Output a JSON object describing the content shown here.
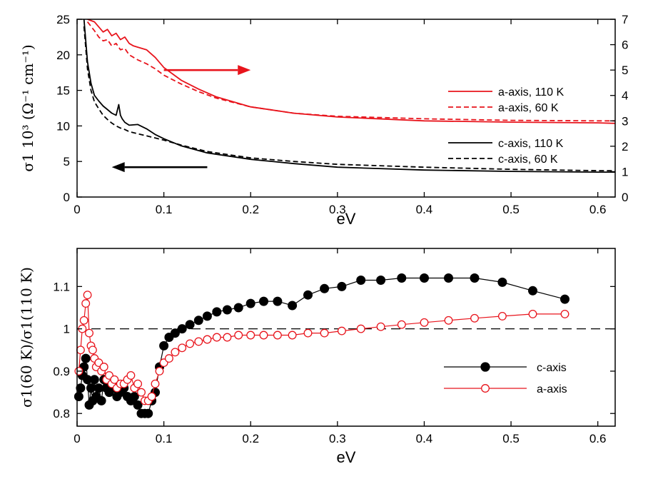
{
  "chart_data": [
    {
      "type": "line",
      "panel": "top",
      "xlabel": "eV",
      "ylabel_left": "σ1 10³ (Ω⁻¹ cm⁻¹)",
      "xlim": [
        0,
        0.62
      ],
      "ylim_left": [
        0,
        25
      ],
      "ylim_right": [
        0,
        7
      ],
      "xticks": [
        "0",
        "0.1",
        "0.2",
        "0.3",
        "0.4",
        "0.5",
        "0.6"
      ],
      "xtick_values": [
        0,
        0.1,
        0.2,
        0.3,
        0.4,
        0.5,
        0.6
      ],
      "yticks_left": [
        "0",
        "5",
        "10",
        "15",
        "20",
        "25"
      ],
      "ytick_values_left": [
        0,
        5,
        10,
        15,
        20,
        25
      ],
      "yticks_right": [
        "0",
        "1",
        "2",
        "3",
        "4",
        "5",
        "6",
        "7"
      ],
      "ytick_values_right": [
        0,
        1,
        2,
        3,
        4,
        5,
        6,
        7
      ],
      "series": [
        {
          "name": "a-axis, 110 K",
          "axis": "right",
          "color": "#e8141c",
          "dash": "solid",
          "x": [
            0.012,
            0.02,
            0.025,
            0.03,
            0.035,
            0.04,
            0.045,
            0.05,
            0.055,
            0.06,
            0.065,
            0.07,
            0.08,
            0.09,
            0.1,
            0.12,
            0.14,
            0.16,
            0.2,
            0.25,
            0.3,
            0.4,
            0.5,
            0.6,
            0.62
          ],
          "y": [
            7.0,
            6.9,
            6.7,
            6.5,
            6.6,
            6.35,
            6.45,
            6.2,
            6.3,
            6.05,
            5.95,
            5.9,
            5.8,
            5.5,
            5.1,
            4.6,
            4.25,
            3.95,
            3.55,
            3.3,
            3.15,
            3.0,
            2.95,
            2.92,
            2.9
          ]
        },
        {
          "name": "a-axis, 60 K",
          "axis": "right",
          "color": "#e8141c",
          "dash": "dashed",
          "x": [
            0.012,
            0.02,
            0.025,
            0.03,
            0.035,
            0.04,
            0.045,
            0.05,
            0.055,
            0.06,
            0.07,
            0.08,
            0.09,
            0.1,
            0.12,
            0.14,
            0.16,
            0.2,
            0.25,
            0.3,
            0.4,
            0.5,
            0.6,
            0.62
          ],
          "y": [
            6.9,
            6.55,
            6.3,
            6.15,
            6.2,
            5.95,
            6.05,
            5.8,
            5.85,
            5.6,
            5.4,
            5.25,
            5.05,
            4.8,
            4.45,
            4.15,
            3.9,
            3.55,
            3.3,
            3.18,
            3.08,
            3.02,
            3.0,
            3.0
          ]
        },
        {
          "name": "c-axis, 110 K",
          "axis": "left",
          "color": "#000000",
          "dash": "solid",
          "x": [
            0.008,
            0.012,
            0.016,
            0.02,
            0.025,
            0.03,
            0.035,
            0.04,
            0.045,
            0.048,
            0.05,
            0.052,
            0.055,
            0.06,
            0.07,
            0.08,
            0.09,
            0.1,
            0.12,
            0.15,
            0.2,
            0.25,
            0.3,
            0.4,
            0.5,
            0.6,
            0.62
          ],
          "y": [
            25,
            19,
            16,
            14.3,
            13.5,
            12.8,
            12.3,
            11.8,
            11.5,
            13,
            11.5,
            11,
            10.5,
            10.1,
            10.2,
            9.6,
            8.8,
            8.2,
            7.2,
            6.2,
            5.3,
            4.7,
            4.2,
            3.8,
            3.6,
            3.5,
            3.5
          ]
        },
        {
          "name": "c-axis, 60 K",
          "axis": "left",
          "color": "#000000",
          "dash": "dashed",
          "x": [
            0.008,
            0.012,
            0.016,
            0.02,
            0.025,
            0.03,
            0.035,
            0.04,
            0.045,
            0.05,
            0.055,
            0.06,
            0.07,
            0.08,
            0.09,
            0.1,
            0.12,
            0.15,
            0.2,
            0.25,
            0.3,
            0.4,
            0.5,
            0.6,
            0.62
          ],
          "y": [
            24,
            18,
            15,
            13.4,
            12.4,
            11.5,
            10.9,
            10.4,
            10.0,
            9.7,
            9.5,
            9.2,
            8.9,
            8.6,
            8.3,
            8.0,
            7.3,
            6.4,
            5.5,
            5.0,
            4.6,
            4.2,
            3.9,
            3.7,
            3.7
          ]
        }
      ],
      "annotations": [
        {
          "type": "arrow",
          "direction": "right",
          "color": "#e8141c",
          "x_start": 0.1,
          "x_end": 0.2,
          "y_right": 5.0,
          "meaning": "red curves use right axis"
        },
        {
          "type": "arrow",
          "direction": "left",
          "color": "#000000",
          "x_start": 0.15,
          "x_end": 0.04,
          "y_left": 4.2,
          "meaning": "black curves use left axis"
        }
      ],
      "legend_position": "right"
    },
    {
      "type": "scatter",
      "panel": "bottom",
      "xlabel": "eV",
      "ylabel": "σ1(60 K)/σ1(110 K)",
      "xlim": [
        0,
        0.62
      ],
      "ylim": [
        0.77,
        1.19
      ],
      "xticks": [
        "0",
        "0.1",
        "0.2",
        "0.3",
        "0.4",
        "0.5",
        "0.6"
      ],
      "xtick_values": [
        0,
        0.1,
        0.2,
        0.3,
        0.4,
        0.5,
        0.6
      ],
      "yticks": [
        "0.8",
        "0.9",
        "1",
        "1.1"
      ],
      "ytick_values": [
        0.8,
        0.9,
        1.0,
        1.1
      ],
      "reference_line": {
        "y": 1.0,
        "style": "dashed"
      },
      "series": [
        {
          "name": "c-axis",
          "color": "#000000",
          "marker": "filled-circle",
          "x": [
            0.002,
            0.004,
            0.006,
            0.008,
            0.01,
            0.012,
            0.014,
            0.016,
            0.018,
            0.02,
            0.022,
            0.025,
            0.028,
            0.031,
            0.034,
            0.037,
            0.04,
            0.043,
            0.046,
            0.05,
            0.054,
            0.058,
            0.062,
            0.066,
            0.07,
            0.074,
            0.078,
            0.082,
            0.086,
            0.09,
            0.095,
            0.1,
            0.106,
            0.113,
            0.121,
            0.13,
            0.14,
            0.15,
            0.161,
            0.173,
            0.186,
            0.2,
            0.215,
            0.231,
            0.248,
            0.266,
            0.285,
            0.305,
            0.327,
            0.35,
            0.374,
            0.4,
            0.428,
            0.458,
            0.49,
            0.525,
            0.562
          ],
          "y": [
            0.84,
            0.86,
            0.89,
            0.91,
            0.93,
            0.88,
            0.82,
            0.86,
            0.83,
            0.88,
            0.84,
            0.86,
            0.83,
            0.88,
            0.86,
            0.85,
            0.87,
            0.86,
            0.84,
            0.85,
            0.86,
            0.84,
            0.83,
            0.84,
            0.82,
            0.8,
            0.8,
            0.8,
            0.83,
            0.85,
            0.91,
            0.96,
            0.98,
            0.99,
            1.0,
            1.01,
            1.02,
            1.03,
            1.04,
            1.045,
            1.05,
            1.06,
            1.065,
            1.065,
            1.055,
            1.08,
            1.095,
            1.1,
            1.115,
            1.115,
            1.12,
            1.12,
            1.12,
            1.12,
            1.11,
            1.09,
            1.07
          ]
        },
        {
          "name": "a-axis",
          "color": "#e8141c",
          "marker": "open-circle",
          "x": [
            0.002,
            0.004,
            0.006,
            0.008,
            0.01,
            0.012,
            0.014,
            0.016,
            0.018,
            0.02,
            0.022,
            0.025,
            0.028,
            0.031,
            0.034,
            0.037,
            0.04,
            0.043,
            0.046,
            0.05,
            0.054,
            0.058,
            0.062,
            0.066,
            0.07,
            0.074,
            0.078,
            0.082,
            0.086,
            0.09,
            0.095,
            0.1,
            0.106,
            0.113,
            0.121,
            0.13,
            0.14,
            0.15,
            0.161,
            0.173,
            0.186,
            0.2,
            0.215,
            0.231,
            0.248,
            0.266,
            0.285,
            0.305,
            0.327,
            0.35,
            0.374,
            0.4,
            0.428,
            0.458,
            0.49,
            0.525,
            0.562
          ],
          "y": [
            0.9,
            0.95,
            1.0,
            1.02,
            1.06,
            1.08,
            0.99,
            0.96,
            0.95,
            0.93,
            0.91,
            0.92,
            0.9,
            0.91,
            0.88,
            0.89,
            0.87,
            0.88,
            0.86,
            0.87,
            0.87,
            0.88,
            0.89,
            0.86,
            0.87,
            0.85,
            0.83,
            0.83,
            0.84,
            0.87,
            0.9,
            0.92,
            0.93,
            0.945,
            0.955,
            0.965,
            0.97,
            0.975,
            0.98,
            0.98,
            0.985,
            0.985,
            0.985,
            0.985,
            0.985,
            0.99,
            0.99,
            0.995,
            1.0,
            1.005,
            1.01,
            1.015,
            1.02,
            1.025,
            1.03,
            1.035,
            1.035
          ]
        }
      ],
      "legend_position": "right"
    }
  ]
}
